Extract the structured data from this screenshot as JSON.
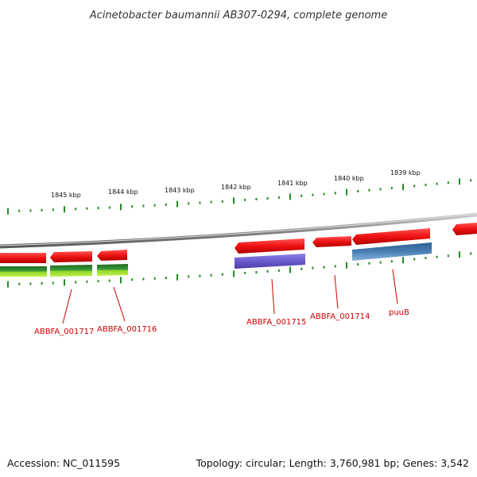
{
  "title": "Acinetobacter baumannii AB307-0294, complete genome",
  "footer": {
    "accession": "Accession: NC_011595",
    "summary": "Topology: circular; Length: 3,760,981 bp; Genes: 3,542"
  },
  "ticks": [
    {
      "label": "1845 kbp"
    },
    {
      "label": "1844 kbp"
    },
    {
      "label": "1843 kbp"
    },
    {
      "label": "1842 kbp"
    },
    {
      "label": "1841 kbp"
    },
    {
      "label": "1840 kbp"
    },
    {
      "label": "1839 kbp"
    }
  ],
  "gene_labels": [
    {
      "name": "ABBFA_001717"
    },
    {
      "name": "ABBFA_001716"
    },
    {
      "name": "ABBFA_001715"
    },
    {
      "name": "ABBFA_001714"
    },
    {
      "name": "puuB"
    }
  ],
  "colors": {
    "backbone": "#8a8a8a",
    "gene_red": "#ee1111",
    "cds_green": "#2e8b2e",
    "cds_lightgreen": "#99dd22",
    "cds_purple": "#6a5acd",
    "cds_blue": "#4a7fb5",
    "tick_green": "#228b22",
    "label_red": "#cc0000"
  }
}
